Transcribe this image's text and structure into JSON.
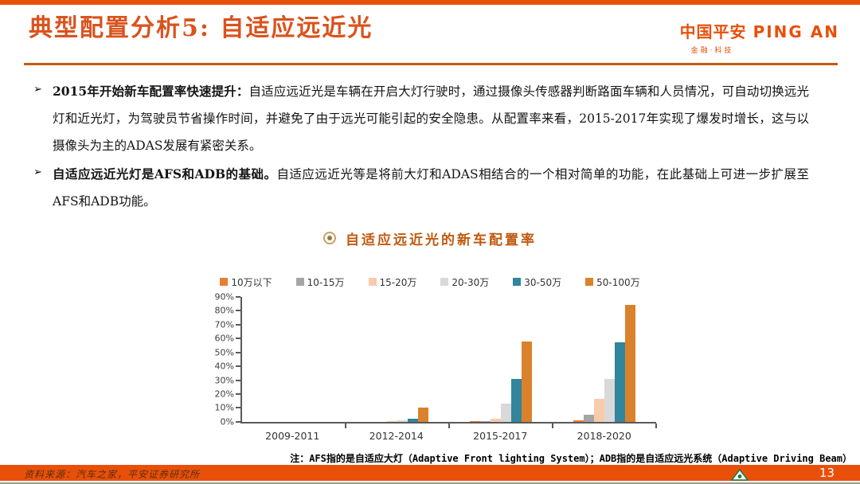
{
  "ui": {
    "bullet_marker": "➢"
  },
  "header": {
    "title": "典型配置分析5: 自适应远近光"
  },
  "logo": {
    "cn": "中国平安",
    "en": "PING AN",
    "sub": "金融·科技"
  },
  "bullets": [
    {
      "lead": "2015年开始新车配置率快速提升：",
      "body": "自适应远近光是车辆在开启大灯行驶时，通过摄像头传感器判断路面车辆和人员情况，可自动切换远光灯和近光灯，为驾驶员节省操作时间，并避免了由于远光可能引起的安全隐患。从配置率来看，2015-2017年实现了爆发时增长，这与以摄像头为主的ADAS发展有紧密关系。"
    },
    {
      "lead": "自适应远近光灯是AFS和ADB的基础。",
      "body": "自适应远近光等是将前大灯和ADAS相结合的一个相对简单的功能，在此基础上可进一步扩展至AFS和ADB功能。"
    }
  ],
  "chart_data": {
    "type": "bar",
    "title": "自适应远近光的新车配置率",
    "categories": [
      "2009-2011",
      "2012-2014",
      "2015-2017",
      "2018-2020"
    ],
    "series": [
      {
        "name": "10万以下",
        "color": "#ED7D31",
        "values": [
          0,
          0,
          0.5,
          1
        ]
      },
      {
        "name": "10-15万",
        "color": "#A5A5A5",
        "values": [
          0,
          0,
          0.5,
          5
        ]
      },
      {
        "name": "15-20万",
        "color": "#F8CBAD",
        "values": [
          0,
          0.5,
          2,
          16.5
        ]
      },
      {
        "name": "20-30万",
        "color": "#D9D9D9",
        "values": [
          0,
          1,
          13,
          31
        ]
      },
      {
        "name": "30-50万",
        "color": "#31859C",
        "values": [
          0,
          2,
          31,
          57
        ]
      },
      {
        "name": "50-100万",
        "color": "#D9822B",
        "values": [
          0,
          10,
          58,
          84
        ]
      }
    ],
    "ylim": [
      0,
      90
    ],
    "ytick_step": 10,
    "ytick_labels": [
      "0%",
      "10%",
      "20%",
      "30%",
      "40%",
      "50%",
      "60%",
      "70%",
      "80%",
      "90%"
    ],
    "grid": false,
    "legend_position": "top"
  },
  "footnote": {
    "text": "注：AFS指的是自适应大灯（Adaptive Front lighting System）；ADB指的是自适应远光系统（Adaptive Driving Beam）"
  },
  "footer": {
    "source": "资料来源：汽车之家，平安证券研究所",
    "page_number": "13"
  },
  "colors": {
    "accent_orange": "#E8500A",
    "title_orange": "#D9531E",
    "divider_orange": "#C55A11",
    "chart_title_orange": "#C0590F",
    "axis_gray": "#595959",
    "logo_green": "#1E7B3C"
  }
}
